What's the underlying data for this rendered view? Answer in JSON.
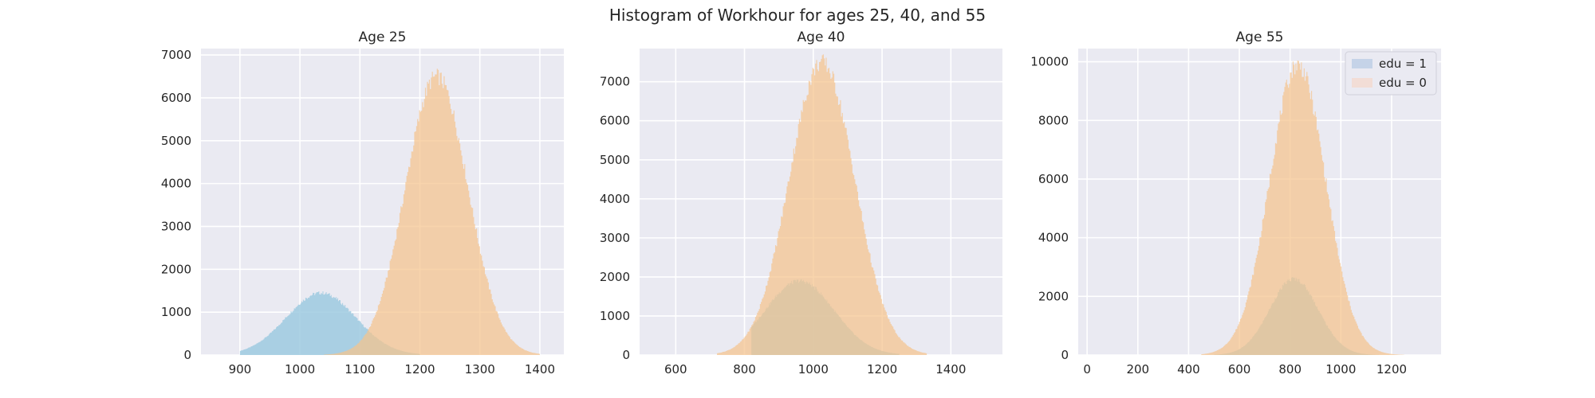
{
  "figure": {
    "title": "Histogram of Workhour for ages 25, 40, and 55"
  },
  "colors": {
    "background": "#eaeaf2",
    "grid": "#ffffff",
    "edu1": "#9ecae1",
    "edu0": "#f5c48c",
    "legend_edu1": "#c5d3e8",
    "legend_edu0": "#f2ddd6"
  },
  "chart_data": [
    {
      "type": "histogram",
      "title": "Age 25",
      "xlabel": "",
      "ylabel": "",
      "xlim": [
        835,
        1440
      ],
      "ylim": [
        0,
        7150
      ],
      "xticks": [
        900,
        1000,
        1100,
        1200,
        1300,
        1400
      ],
      "yticks": [
        0,
        1000,
        2000,
        3000,
        4000,
        5000,
        6000,
        7000
      ],
      "grid": true,
      "series": [
        {
          "name": "edu = 1",
          "mean": 1035,
          "sd": 58,
          "peak": 1450,
          "range": [
            900,
            1200
          ]
        },
        {
          "name": "edu = 0",
          "mean": 1228,
          "sd": 52,
          "peak": 6500,
          "range": [
            1040,
            1400
          ]
        }
      ]
    },
    {
      "type": "histogram",
      "title": "Age 40",
      "xlabel": "",
      "ylabel": "",
      "xlim": [
        495,
        1550
      ],
      "ylim": [
        0,
        7850
      ],
      "xticks": [
        600,
        800,
        1000,
        1200,
        1400
      ],
      "yticks": [
        0,
        1000,
        2000,
        3000,
        4000,
        5000,
        6000,
        7000
      ],
      "grid": true,
      "series": [
        {
          "name": "edu = 1",
          "mean": 960,
          "sd": 100,
          "peak": 1900,
          "range": [
            820,
            1250
          ]
        },
        {
          "name": "edu = 0",
          "mean": 1025,
          "sd": 95,
          "peak": 7500,
          "range": [
            720,
            1330
          ]
        }
      ]
    },
    {
      "type": "histogram",
      "title": "Age 55",
      "xlabel": "",
      "ylabel": "",
      "xlim": [
        -35,
        1395
      ],
      "ylim": [
        0,
        10450
      ],
      "xticks": [
        0,
        200,
        400,
        600,
        800,
        1000,
        1200
      ],
      "yticks": [
        0,
        2000,
        4000,
        6000,
        8000,
        10000
      ],
      "grid": true,
      "legend": {
        "position": "top-right",
        "entries": [
          "edu = 1",
          "edu = 0"
        ]
      },
      "series": [
        {
          "name": "edu = 1",
          "mean": 815,
          "sd": 95,
          "peak": 2600,
          "range": [
            500,
            1150
          ]
        },
        {
          "name": "edu = 0",
          "mean": 830,
          "sd": 110,
          "peak": 9900,
          "range": [
            450,
            1250
          ]
        }
      ]
    }
  ]
}
